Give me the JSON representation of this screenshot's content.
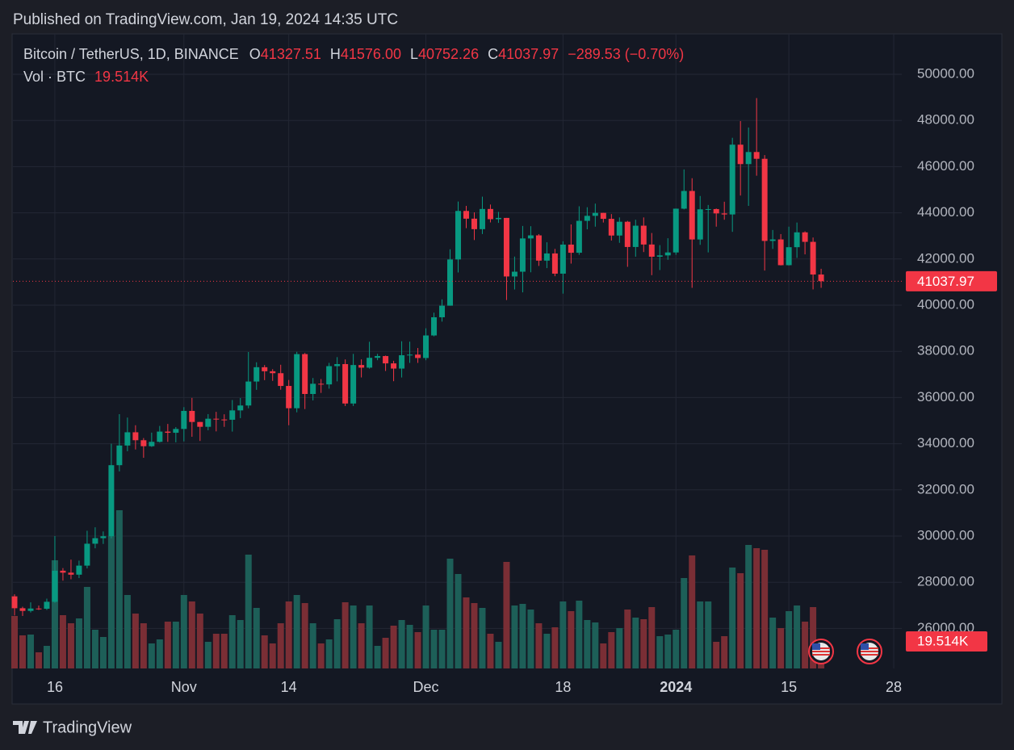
{
  "header": {
    "published": "Published on TradingView.com, Jan 19, 2024 14:35 UTC"
  },
  "footer": {
    "brand": "TradingView"
  },
  "legend": {
    "symbol": "Bitcoin / TetherUS, 1D, BINANCE",
    "open_label": "O",
    "open": "41327.51",
    "high_label": "H",
    "high": "41576.00",
    "low_label": "L",
    "low": "40752.26",
    "close_label": "C",
    "close": "41037.97",
    "change": "−289.53 (−0.70%)",
    "volume_title": "Vol · BTC",
    "volume": "19.514K"
  },
  "chart_data": {
    "type": "candlestick",
    "x": [
      "2023-10-11",
      "2023-10-12",
      "2023-10-13",
      "2023-10-14",
      "2023-10-15",
      "2023-10-16",
      "2023-10-17",
      "2023-10-18",
      "2023-10-19",
      "2023-10-20",
      "2023-10-21",
      "2023-10-22",
      "2023-10-23",
      "2023-10-24",
      "2023-10-25",
      "2023-10-26",
      "2023-10-27",
      "2023-10-28",
      "2023-10-29",
      "2023-10-30",
      "2023-10-31",
      "2023-11-01",
      "2023-11-02",
      "2023-11-03",
      "2023-11-04",
      "2023-11-05",
      "2023-11-06",
      "2023-11-07",
      "2023-11-08",
      "2023-11-09",
      "2023-11-10",
      "2023-11-11",
      "2023-11-12",
      "2023-11-13",
      "2023-11-14",
      "2023-11-15",
      "2023-11-16",
      "2023-11-17",
      "2023-11-18",
      "2023-11-19",
      "2023-11-20",
      "2023-11-21",
      "2023-11-22",
      "2023-11-23",
      "2023-11-24",
      "2023-11-25",
      "2023-11-26",
      "2023-11-27",
      "2023-11-28",
      "2023-11-29",
      "2023-11-30",
      "2023-12-01",
      "2023-12-02",
      "2023-12-03",
      "2023-12-04",
      "2023-12-05",
      "2023-12-06",
      "2023-12-07",
      "2023-12-08",
      "2023-12-09",
      "2023-12-10",
      "2023-12-11",
      "2023-12-12",
      "2023-12-13",
      "2023-12-14",
      "2023-12-15",
      "2023-12-16",
      "2023-12-17",
      "2023-12-18",
      "2023-12-19",
      "2023-12-20",
      "2023-12-21",
      "2023-12-22",
      "2023-12-23",
      "2023-12-24",
      "2023-12-25",
      "2023-12-26",
      "2023-12-27",
      "2023-12-28",
      "2023-12-29",
      "2023-12-30",
      "2023-12-31",
      "2024-01-01",
      "2024-01-02",
      "2024-01-03",
      "2024-01-04",
      "2024-01-05",
      "2024-01-06",
      "2024-01-07",
      "2024-01-08",
      "2024-01-09",
      "2024-01-10",
      "2024-01-11",
      "2024-01-12",
      "2024-01-13",
      "2024-01-14",
      "2024-01-15",
      "2024-01-16",
      "2024-01-17",
      "2024-01-18",
      "2024-01-19"
    ],
    "open": [
      27390,
      26875,
      26759,
      26862,
      26852,
      27154,
      28500,
      28415,
      28328,
      28720,
      29669,
      29909,
      29992,
      33070,
      33922,
      34495,
      34151,
      33892,
      34081,
      34525,
      34474,
      34639,
      35421,
      34941,
      34732,
      35082,
      35049,
      35037,
      35443,
      35655,
      36693,
      37313,
      37138,
      37054,
      36502,
      35537,
      37880,
      36154,
      36596,
      36568,
      37359,
      37448,
      35741,
      37408,
      37294,
      37720,
      37796,
      37479,
      37254,
      37831,
      37858,
      37712,
      38688,
      39476,
      39978,
      41980,
      44080,
      43746,
      43292,
      44166,
      43725,
      43779,
      41243,
      41450,
      42890,
      43023,
      41929,
      42240,
      41365,
      42623,
      42270,
      43652,
      43869,
      43997,
      43739,
      43016,
      43613,
      42520,
      43442,
      42627,
      42099,
      42156,
      42283,
      44179,
      44946,
      42845,
      44151,
      44162,
      43974,
      43929,
      46951,
      46110,
      46633,
      46339,
      42782,
      42847,
      41732,
      42511,
      43154,
      42742,
      41327.51
    ],
    "high": [
      27480,
      26940,
      27130,
      26990,
      27290,
      30000,
      28613,
      28980,
      28937,
      30230,
      30380,
      30200,
      34000,
      35280,
      35132,
      34800,
      34245,
      34480,
      34770,
      34856,
      34720,
      35584,
      35984,
      34947,
      35282,
      35380,
      35275,
      35892,
      35980,
      37972,
      37526,
      37407,
      37228,
      37420,
      36760,
      37980,
      37930,
      36845,
      36800,
      37500,
      37750,
      37650,
      37890,
      37653,
      38415,
      37892,
      37817,
      37590,
      38437,
      38420,
      38145,
      38999,
      39676,
      40250,
      42420,
      44488,
      44300,
      44020,
      44700,
      44359,
      44040,
      43780,
      42104,
      43431,
      43420,
      43079,
      42724,
      42437,
      42767,
      43497,
      44283,
      44242,
      44398,
      44000,
      43945,
      43800,
      43650,
      43700,
      43800,
      43125,
      42600,
      42899,
      44185,
      45879,
      45500,
      44729,
      44340,
      44187,
      44480,
      47248,
      47972,
      47695,
      48970,
      46500,
      43257,
      43079,
      43400,
      43578,
      43198,
      42930,
      41576
    ],
    "low": [
      26560,
      26540,
      26690,
      26800,
      26800,
      27112,
      28069,
      28130,
      28180,
      28600,
      29470,
      29660,
      29900,
      32800,
      33675,
      33750,
      33390,
      33860,
      34050,
      34080,
      34060,
      34100,
      34300,
      34120,
      34582,
      34534,
      34730,
      34525,
      35108,
      35534,
      36333,
      36753,
      36723,
      36338,
      34800,
      35360,
      35500,
      35875,
      36200,
      36384,
      36700,
      35632,
      35634,
      36870,
      37251,
      37617,
      37150,
      36707,
      36868,
      37500,
      37500,
      37616,
      38650,
      39288,
      39978,
      41415,
      43335,
      42821,
      43081,
      43584,
      43563,
      40222,
      40680,
      40555,
      41424,
      41700,
      41605,
      41254,
      40500,
      41800,
      42180,
      43285,
      43400,
      43580,
      42800,
      42700,
      41660,
      42100,
      42300,
      41300,
      41520,
      41965,
      42181,
      44148,
      40750,
      42613,
      42285,
      43400,
      43700,
      43175,
      44748,
      44300,
      45606,
      41500,
      42436,
      41720,
      41718,
      42049,
      42200,
      40683,
      40752.26
    ],
    "close": [
      26875,
      26759,
      26862,
      26852,
      27154,
      28500,
      28415,
      28328,
      28720,
      29669,
      29909,
      29992,
      33070,
      33922,
      34495,
      34151,
      33892,
      34081,
      34525,
      34474,
      34639,
      35421,
      34941,
      34732,
      35082,
      35049,
      35037,
      35443,
      35655,
      36693,
      37313,
      37138,
      37054,
      36502,
      35537,
      37880,
      36154,
      36596,
      36568,
      37359,
      37448,
      35741,
      37408,
      37294,
      37720,
      37796,
      37479,
      37254,
      37831,
      37858,
      37712,
      38688,
      39476,
      39978,
      41980,
      44080,
      43746,
      43292,
      44166,
      43725,
      43779,
      41243,
      41450,
      42890,
      43023,
      41929,
      42240,
      41365,
      42623,
      42270,
      43652,
      43869,
      43997,
      43739,
      43016,
      43613,
      42520,
      43442,
      42627,
      42099,
      42156,
      42283,
      44179,
      44946,
      42845,
      44151,
      44162,
      43974,
      43929,
      46951,
      46110,
      46633,
      46339,
      42782,
      42847,
      41732,
      42511,
      43154,
      42742,
      41327.51,
      41037.97
    ],
    "volume": [
      45500,
      28700,
      29400,
      14000,
      19600,
      93800,
      46200,
      39200,
      43400,
      70700,
      33600,
      27300,
      114800,
      137200,
      63700,
      47600,
      39200,
      21700,
      25200,
      40600,
      40600,
      63700,
      58100,
      47600,
      23100,
      30100,
      30100,
      46200,
      42000,
      98700,
      52500,
      28700,
      21700,
      39200,
      58100,
      63700,
      56700,
      39200,
      21700,
      25200,
      42700,
      57400,
      54600,
      39200,
      54600,
      19600,
      26600,
      37100,
      42000,
      37800,
      31500,
      54600,
      33600,
      33600,
      95200,
      81900,
      61600,
      56700,
      52500,
      30100,
      23100,
      92400,
      54600,
      56000,
      51100,
      39200,
      30100,
      35700,
      58100,
      49700,
      58800,
      42000,
      39900,
      21700,
      31500,
      35000,
      51100,
      44100,
      42700,
      53200,
      28000,
      29400,
      33600,
      78400,
      98000,
      58100,
      58100,
      23100,
      28000,
      87500,
      82600,
      107100,
      104300,
      102900,
      44100,
      35000,
      49700,
      54600,
      40600,
      53200,
      19514
    ],
    "xlim": [
      "2023-10-11",
      "2024-01-29"
    ],
    "xticks": [
      {
        "value": "2023-10-16",
        "label": "16"
      },
      {
        "value": "2023-11-01",
        "label": "Nov"
      },
      {
        "value": "2023-11-14",
        "label": "14"
      },
      {
        "value": "2023-12-01",
        "label": "Dec"
      },
      {
        "value": "2023-12-18",
        "label": "18"
      },
      {
        "value": "2024-01-01",
        "label": "2024"
      },
      {
        "value": "2024-01-15",
        "label": "15"
      },
      {
        "value": "2024-01-28",
        "label": "28"
      }
    ],
    "ylim": [
      24266,
      51818
    ],
    "yticks": [
      {
        "value": 26000,
        "label": "26000.00"
      },
      {
        "value": 28000,
        "label": "28000.00"
      },
      {
        "value": 30000,
        "label": "30000.00"
      },
      {
        "value": 32000,
        "label": "32000.00"
      },
      {
        "value": 34000,
        "label": "34000.00"
      },
      {
        "value": 36000,
        "label": "36000.00"
      },
      {
        "value": 38000,
        "label": "38000.00"
      },
      {
        "value": 40000,
        "label": "40000.00"
      },
      {
        "value": 42000,
        "label": "42000.00"
      },
      {
        "value": 44000,
        "label": "44000.00"
      },
      {
        "value": 46000,
        "label": "46000.00"
      },
      {
        "value": 48000,
        "label": "48000.00"
      },
      {
        "value": 50000,
        "label": "50000.00"
      }
    ],
    "y2lim": [
      0,
      551600
    ],
    "grid": true,
    "up_color": "#089981",
    "down_color": "#f23645",
    "up_volume_color": "#1d5f58",
    "down_volume_color": "#7a2e35"
  }
}
